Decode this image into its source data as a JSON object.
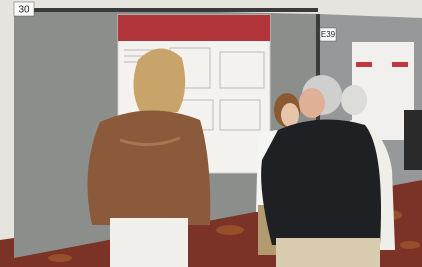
{
  "signs": {
    "left": "30",
    "booth": "E39"
  }
}
